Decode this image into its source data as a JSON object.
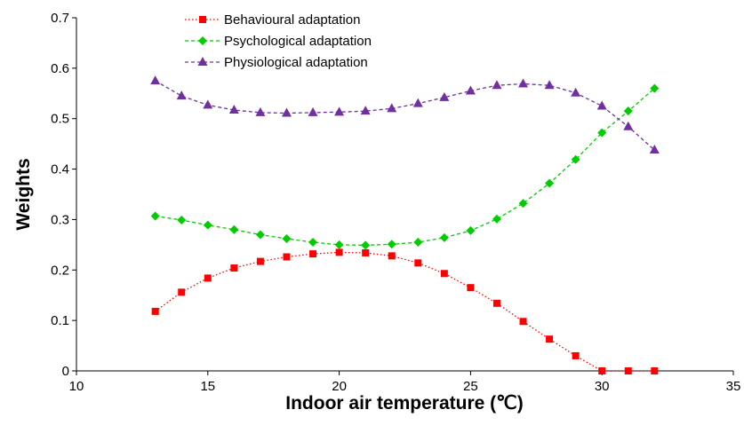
{
  "chart_data": {
    "type": "line",
    "xlabel": "Indoor air temperature (℃)",
    "ylabel": "Weights",
    "xlim": [
      10,
      35
    ],
    "ylim": [
      0,
      0.7
    ],
    "xticks": [
      10,
      15,
      20,
      25,
      30,
      35
    ],
    "yticks": [
      0,
      0.1,
      0.2,
      0.3,
      0.4,
      0.5,
      0.6,
      0.7
    ],
    "xtick_labels": [
      "10",
      "15",
      "20",
      "25",
      "30",
      "35"
    ],
    "ytick_labels": [
      "0",
      "0.1",
      "0.2",
      "0.3",
      "0.4",
      "0.5",
      "0.6",
      "0.7"
    ],
    "grid": false,
    "legend_position": "top-center",
    "x": [
      13,
      14,
      15,
      16,
      17,
      18,
      19,
      20,
      21,
      22,
      23,
      24,
      25,
      26,
      27,
      28,
      29,
      30,
      31,
      32
    ],
    "series": [
      {
        "name": "Behavioural adaptation",
        "color": "#ff0000",
        "marker": "square",
        "dash": "dotted",
        "values": [
          0.118,
          0.156,
          0.184,
          0.204,
          0.217,
          0.226,
          0.232,
          0.235,
          0.234,
          0.228,
          0.214,
          0.193,
          0.165,
          0.134,
          0.098,
          0.063,
          0.03,
          0.0,
          0.0,
          0.0
        ]
      },
      {
        "name": "Psychological adaptation",
        "color": "#00cc00",
        "marker": "diamond",
        "dash": "dashed",
        "values": [
          0.307,
          0.299,
          0.289,
          0.28,
          0.27,
          0.262,
          0.255,
          0.25,
          0.249,
          0.251,
          0.255,
          0.264,
          0.278,
          0.301,
          0.332,
          0.372,
          0.419,
          0.472,
          0.515,
          0.56
        ]
      },
      {
        "name": "Physiological adaptation",
        "color": "#7030a0",
        "marker": "triangle",
        "dash": "dashed",
        "values": [
          0.575,
          0.545,
          0.527,
          0.517,
          0.512,
          0.511,
          0.512,
          0.513,
          0.515,
          0.52,
          0.53,
          0.542,
          0.555,
          0.566,
          0.569,
          0.566,
          0.551,
          0.525,
          0.484,
          0.438
        ]
      }
    ]
  }
}
